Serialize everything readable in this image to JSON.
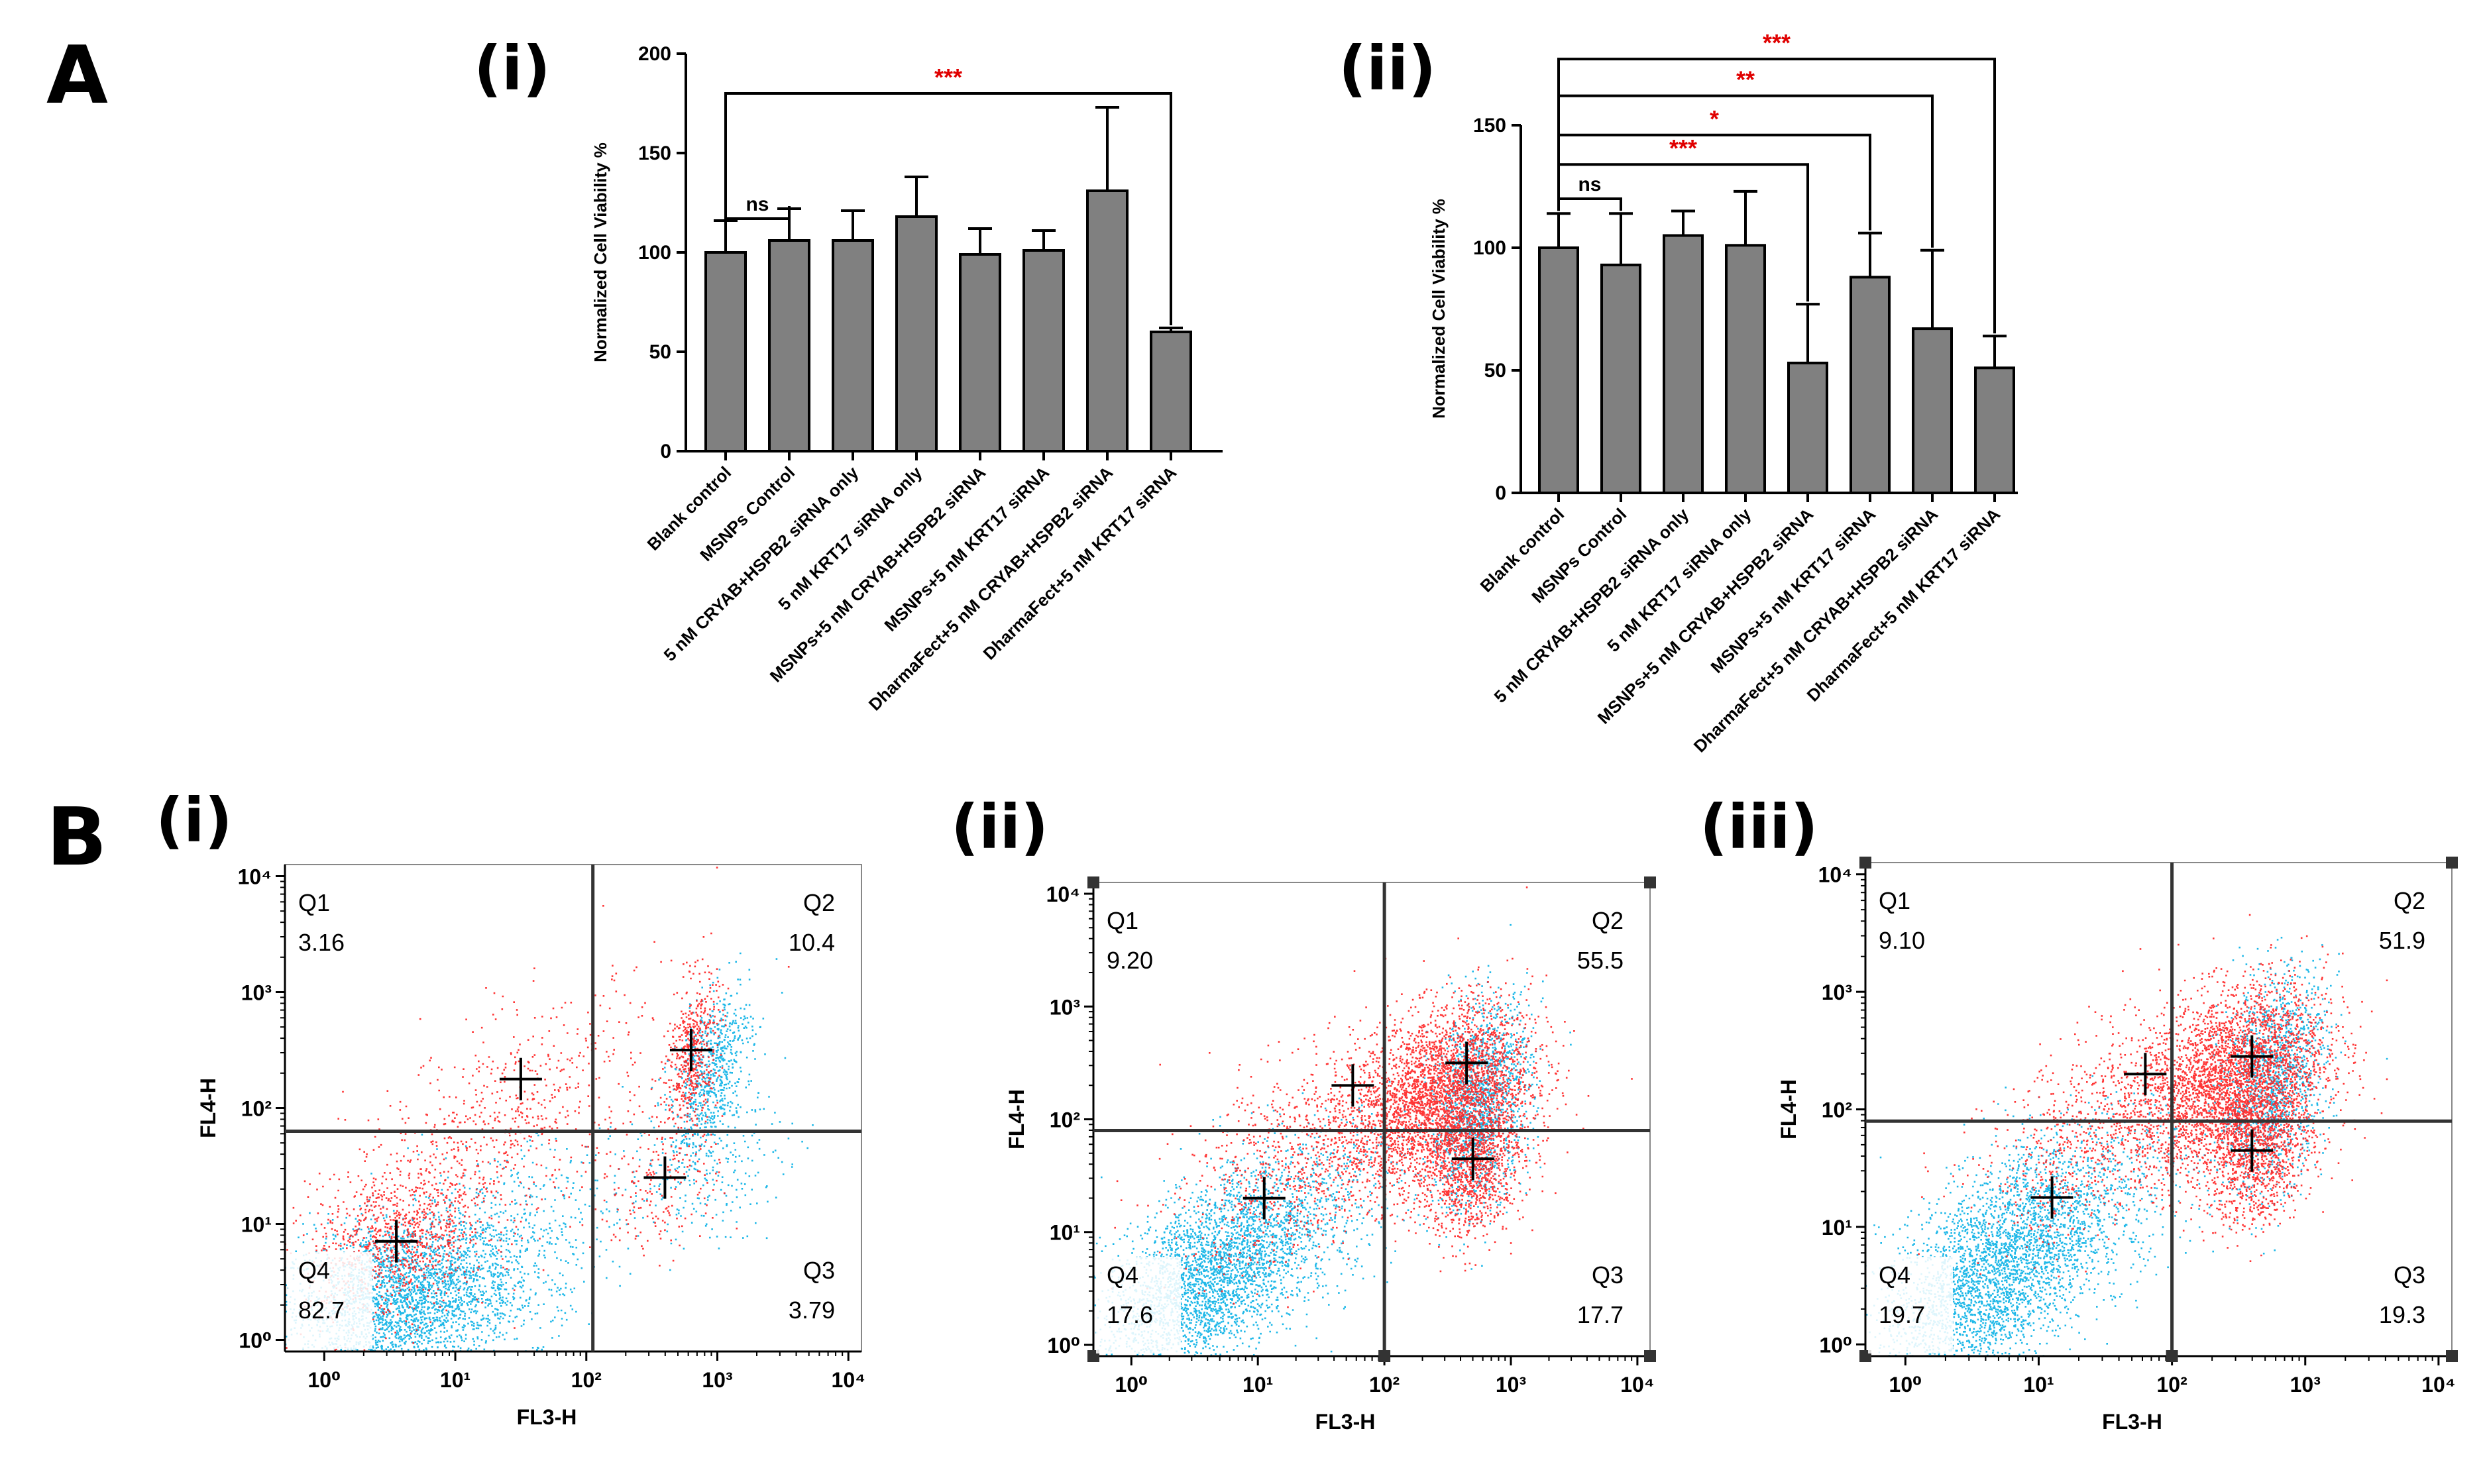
{
  "figure": {
    "panel_A_label": "A",
    "panel_B_label": "B"
  },
  "colors": {
    "bar_fill": "#808080",
    "significance": "#e00000",
    "event_red": "#ff2020",
    "event_cyan": "#1fb8e8"
  },
  "chart_data": [
    {
      "id": "A-i",
      "type": "bar",
      "sublabel": "(i)",
      "ylabel": "Normalized Cell Viability %",
      "ylim": [
        0,
        200
      ],
      "yticks": [
        0,
        50,
        100,
        150,
        200
      ],
      "categories": [
        "Blank control",
        "MSNPs Control",
        "5 nM CRYAB+HSPB2 siRNA only",
        "5 nM KRT17 siRNA only",
        "MSNPs+5 nM CRYAB+HSPB2 siRNA",
        "MSNPs+5 nM KRT17 siRNA",
        "DharmaFect+5 nM CRYAB+HSPB2 siRNA",
        "DharmaFect+5 nM KRT17 siRNA"
      ],
      "values": [
        100,
        106,
        106,
        118,
        99,
        101,
        131,
        60
      ],
      "errors": [
        16,
        16,
        15,
        20,
        13,
        10,
        42,
        2
      ],
      "comparisons": [
        {
          "from": 0,
          "to": 1,
          "label": "ns",
          "level": 117
        },
        {
          "from": 0,
          "to": 7,
          "label": "***",
          "level": 180
        }
      ]
    },
    {
      "id": "A-ii",
      "type": "bar",
      "sublabel": "(ii)",
      "ylabel": "Normalized Cell Viability %",
      "ylim": [
        0,
        150
      ],
      "yticks": [
        0,
        50,
        100,
        150
      ],
      "categories": [
        "Blank control",
        "MSNPs Control",
        "5 nM CRYAB+HSPB2 siRNA only",
        "5 nM KRT17 siRNA only",
        "MSNPs+5 nM CRYAB+HSPB2 siRNA",
        "MSNPs+5 nM KRT17 siRNA",
        "DharmaFect+5 nM CRYAB+HSPB2 siRNA",
        "DharmaFect+5 nM KRT17 siRNA"
      ],
      "values": [
        100,
        93,
        105,
        101,
        53,
        88,
        67,
        51
      ],
      "errors": [
        14,
        21,
        10,
        22,
        24,
        18,
        32,
        13
      ],
      "comparisons": [
        {
          "from": 0,
          "to": 1,
          "label": "ns",
          "level": 120
        },
        {
          "from": 0,
          "to": 4,
          "label": "***",
          "level": 134
        },
        {
          "from": 0,
          "to": 5,
          "label": "*",
          "level": 146
        },
        {
          "from": 0,
          "to": 6,
          "label": "**",
          "level": 162
        },
        {
          "from": 0,
          "to": 7,
          "label": "***",
          "level": 177
        }
      ]
    },
    {
      "id": "B-i",
      "type": "scatter",
      "sublabel": "(i)",
      "xlabel": "FL3-H",
      "ylabel": "FL4-H",
      "xlim_log10": [
        -0.3,
        4.1
      ],
      "ylim_log10": [
        -0.1,
        4.1
      ],
      "gate_log10": {
        "x": 2.05,
        "y": 1.8
      },
      "quadrants": [
        {
          "name": "Q1",
          "value": "3.16"
        },
        {
          "name": "Q2",
          "value": "10.4"
        },
        {
          "name": "Q3",
          "value": "3.79"
        },
        {
          "name": "Q4",
          "value": "82.7"
        }
      ],
      "centroids_log10": [
        [
          0.55,
          0.85
        ],
        [
          1.5,
          2.25
        ],
        [
          2.8,
          2.5
        ],
        [
          2.6,
          1.4
        ]
      ]
    },
    {
      "id": "B-ii",
      "type": "scatter",
      "sublabel": "(ii)",
      "xlabel": "FL3-H",
      "ylabel": "FL4-H",
      "xlim_log10": [
        -0.3,
        4.1
      ],
      "ylim_log10": [
        -0.1,
        4.1
      ],
      "gate_log10": {
        "x": 2.0,
        "y": 1.9
      },
      "quadrants": [
        {
          "name": "Q1",
          "value": "9.20"
        },
        {
          "name": "Q2",
          "value": "55.5"
        },
        {
          "name": "Q3",
          "value": "17.7"
        },
        {
          "name": "Q4",
          "value": "17.6"
        }
      ],
      "centroids_log10": [
        [
          1.05,
          1.3
        ],
        [
          1.75,
          2.3
        ],
        [
          2.65,
          2.5
        ],
        [
          2.7,
          1.65
        ]
      ]
    },
    {
      "id": "B-iii",
      "type": "scatter",
      "sublabel": "(iii)",
      "xlabel": "FL3-H",
      "ylabel": "FL4-H",
      "xlim_log10": [
        -0.3,
        4.1
      ],
      "ylim_log10": [
        -0.1,
        4.1
      ],
      "gate_log10": {
        "x": 2.0,
        "y": 1.9
      },
      "quadrants": [
        {
          "name": "Q1",
          "value": "9.10"
        },
        {
          "name": "Q2",
          "value": "51.9"
        },
        {
          "name": "Q3",
          "value": "19.3"
        },
        {
          "name": "Q4",
          "value": "19.7"
        }
      ],
      "centroids_log10": [
        [
          1.1,
          1.25
        ],
        [
          1.8,
          2.3
        ],
        [
          2.6,
          2.45
        ],
        [
          2.6,
          1.65
        ]
      ]
    }
  ]
}
